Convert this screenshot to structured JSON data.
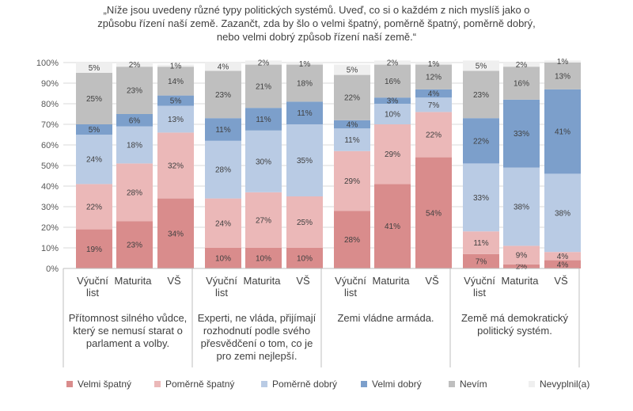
{
  "chart_data": {
    "type": "bar",
    "stacked": true,
    "normalized": true,
    "title_lines": [
      "„Níže jsou uvedeny různé typy politických systémů. Uveď, co si o každém z nich myslíš jako o",
      "způsobu řízení naší země. Zazančt, zda by šlo o velmi špatný, poměrně špatný, poměrně dobrý,",
      "nebo velmi dobrý způsob řízení naší země.“"
    ],
    "ylim": [
      0,
      100
    ],
    "y_ticks": [
      "0%",
      "10%",
      "20%",
      "30%",
      "40%",
      "50%",
      "60%",
      "70%",
      "80%",
      "90%",
      "100%"
    ],
    "grid": true,
    "legend_position": "bottom",
    "groups": [
      {
        "label": [
          "Přítomnost silného vůdce,",
          "který se nemusí starat o",
          "parlament a volby."
        ],
        "bars": [
          {
            "label": [
              "Výuční",
              "list"
            ],
            "values": [
              19,
              22,
              24,
              5,
              25,
              5
            ]
          },
          {
            "label": [
              "Maturita"
            ],
            "values": [
              23,
              28,
              18,
              6,
              23,
              2
            ]
          },
          {
            "label": [
              "VŠ"
            ],
            "values": [
              34,
              32,
              13,
              5,
              14,
              1
            ]
          }
        ]
      },
      {
        "label": [
          "Experti, ne vláda, přijímají",
          "rozhodnutí podle svého",
          "přesvědčení o tom, co je",
          "pro zemi nejlepší."
        ],
        "bars": [
          {
            "label": [
              "Výuční",
              "list"
            ],
            "values": [
              10,
              24,
              28,
              11,
              23,
              4
            ]
          },
          {
            "label": [
              "Maturita"
            ],
            "values": [
              10,
              27,
              30,
              11,
              21,
              2
            ]
          },
          {
            "label": [
              "VŠ"
            ],
            "values": [
              10,
              25,
              35,
              11,
              18,
              1
            ]
          }
        ]
      },
      {
        "label": [
          "Zemi vládne armáda."
        ],
        "bars": [
          {
            "label": [
              "Výuční",
              "list"
            ],
            "values": [
              28,
              29,
              11,
              4,
              22,
              5
            ]
          },
          {
            "label": [
              "Maturita"
            ],
            "values": [
              41,
              29,
              10,
              3,
              16,
              2
            ]
          },
          {
            "label": [
              "VŠ"
            ],
            "values": [
              54,
              22,
              7,
              4,
              12,
              1
            ]
          }
        ]
      },
      {
        "label": [
          "Země má demokratický",
          "politický systém."
        ],
        "bars": [
          {
            "label": [
              "Výuční",
              "list"
            ],
            "values": [
              7,
              11,
              33,
              22,
              23,
              5
            ]
          },
          {
            "label": [
              "Maturita"
            ],
            "values": [
              2,
              9,
              38,
              33,
              16,
              2
            ]
          },
          {
            "label": [
              "VŠ"
            ],
            "values": [
              4,
              4,
              38,
              41,
              13,
              1
            ]
          }
        ]
      }
    ],
    "series": [
      {
        "name": "Velmi špatný",
        "color": "#d98c8c"
      },
      {
        "name": "Poměrně špatný",
        "color": "#ebb8b8"
      },
      {
        "name": "Poměrně dobrý",
        "color": "#b9cbe4"
      },
      {
        "name": "Velmi dobrý",
        "color": "#7c9fcb"
      },
      {
        "name": "Nevím",
        "color": "#bfbfbf"
      },
      {
        "name": "Nevyplnil(a)",
        "color": "#efefef"
      }
    ]
  }
}
